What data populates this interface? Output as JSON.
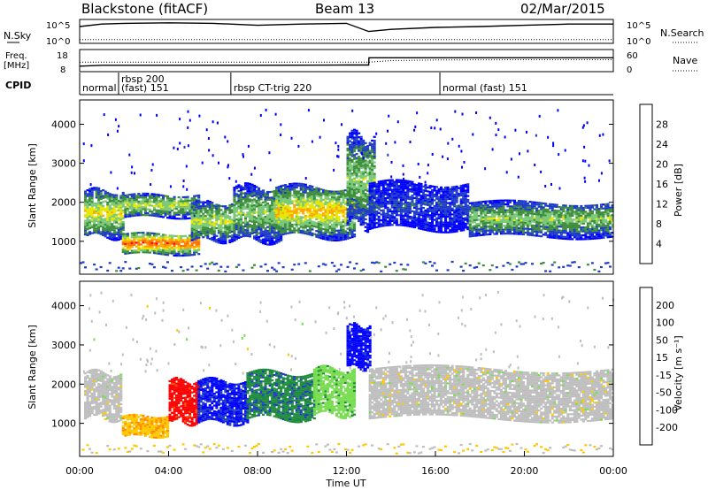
{
  "header": {
    "station": "Blackstone (fitACF)",
    "beam": "Beam 13",
    "date": "02/Mar/2015"
  },
  "noise_panel": {
    "left_label": "N.Sky",
    "right_label": "N.Search",
    "left_ticks": [
      "10^5",
      "10^0"
    ],
    "right_ticks": [
      "10^5",
      "10^0"
    ]
  },
  "freq_panel": {
    "left_label_top": "Freq.",
    "left_label_bottom": "[MHz]",
    "right_label": "Nave",
    "left_ticks": [
      "18",
      "8"
    ],
    "right_ticks": [
      "60",
      "0"
    ]
  },
  "cpid_panel": {
    "label": "CPID",
    "segments": [
      {
        "start_hour": 0.0,
        "name": "normal"
      },
      {
        "start_hour": 1.75,
        "name": "rbsp 200"
      },
      {
        "start_hour": 1.75,
        "name": "(fast) 151"
      },
      {
        "start_hour": 6.8,
        "name": "rbsp CT-trig 220"
      },
      {
        "start_hour": 16.2,
        "name": "normal (fast) 151"
      }
    ]
  },
  "power_panel": {
    "ylabel": "Slant Range [km]",
    "colorbar_label": "Power [dB]",
    "colorbar_ticks": [
      "28",
      "24",
      "20",
      "16",
      "12",
      "8",
      "4"
    ]
  },
  "velocity_panel": {
    "ylabel": "Slant Range [km]",
    "colorbar_label": "Velocity [m s⁻¹]",
    "colorbar_ticks": [
      "200",
      "100",
      "50",
      "15",
      "-15",
      "-50",
      "-100",
      "-200"
    ]
  },
  "xaxis": {
    "label": "Time UT",
    "ticks": [
      "00:00",
      "04:00",
      "08:00",
      "12:00",
      "16:00",
      "20:00",
      "00:00"
    ]
  },
  "chart_data": [
    {
      "type": "line",
      "title": "",
      "series": [
        {
          "name": "N.Sky",
          "x": [
            0,
            1,
            2,
            4,
            6,
            8,
            10,
            12,
            13,
            14,
            16,
            18,
            20,
            22,
            24
          ],
          "y": [
            5000,
            20000,
            30000,
            40000,
            30000,
            10000,
            20000,
            30000,
            300,
            1000,
            3000,
            5000,
            10000,
            20000,
            20000
          ]
        },
        {
          "name": "N.Search",
          "x": [
            0,
            2,
            4,
            6,
            8,
            10,
            12,
            13,
            16,
            20,
            24
          ],
          "y": [
            3,
            3,
            3,
            3,
            3,
            3,
            3,
            3,
            3,
            3,
            3
          ]
        }
      ],
      "ylim": [
        1,
        100000
      ]
    },
    {
      "type": "line",
      "series": [
        {
          "name": "Freq.",
          "x": [
            0,
            1,
            2,
            6,
            8,
            12,
            13,
            13.01,
            24
          ],
          "y": [
            10,
            10.5,
            10.5,
            10.5,
            10.5,
            10.6,
            10.6,
            14.5,
            14.5
          ]
        },
        {
          "name": "Nave",
          "x": [
            0,
            13,
            14,
            16,
            20,
            24
          ],
          "y": [
            25,
            25,
            30,
            32,
            33,
            33
          ]
        }
      ],
      "ylim": [
        8,
        18
      ]
    },
    {
      "type": "heatmap",
      "title": "Power [dB]",
      "xlabel": "Time UT",
      "ylabel": "Slant Range [km]",
      "xlim": [
        0,
        24
      ],
      "ylim": [
        180,
        4600
      ],
      "yticks": [
        1000,
        2000,
        3000,
        4000
      ],
      "colorscale": [
        "#0000ff",
        "#1e3cc8",
        "#3c8c3c",
        "#78c878",
        "#e6e600",
        "#ffa500",
        "#ff7000",
        "#ff0000"
      ],
      "bands": [
        {
          "x0": 0.2,
          "x1": 2.0,
          "y0": 1100,
          "y1": 2300,
          "core_db": 18
        },
        {
          "x0": 1.9,
          "x1": 5.3,
          "y0": 650,
          "y1": 1200,
          "core_db": 26
        },
        {
          "x0": 2.0,
          "x1": 5.3,
          "y0": 1600,
          "y1": 2200,
          "core_db": 16
        },
        {
          "x0": 5.0,
          "x1": 6.9,
          "y0": 1000,
          "y1": 2000,
          "core_db": 16
        },
        {
          "x0": 6.9,
          "x1": 9.0,
          "y0": 1000,
          "y1": 2400,
          "core_db": 14
        },
        {
          "x0": 8.8,
          "x1": 12.3,
          "y0": 1100,
          "y1": 2400,
          "core_db": 20
        },
        {
          "x0": 12.0,
          "x1": 13.2,
          "y0": 1400,
          "y1": 3700,
          "core_db": 14
        },
        {
          "x0": 13.0,
          "x1": 17.5,
          "y0": 1300,
          "y1": 2500,
          "core_db": 6
        },
        {
          "x0": 17.5,
          "x1": 24,
          "y0": 1100,
          "y1": 2000,
          "core_db": 14
        }
      ],
      "colorbar_range_db": [
        0,
        30
      ]
    },
    {
      "type": "heatmap",
      "title": "Velocity [m s⁻¹]",
      "xlabel": "Time UT",
      "ylabel": "Slant Range [km]",
      "xlim": [
        0,
        24
      ],
      "ylim": [
        180,
        4600
      ],
      "yticks": [
        1000,
        2000,
        3000,
        4000
      ],
      "colorscale": [
        "#ff0000",
        "#ff5000",
        "#ff8c00",
        "#ffc800",
        "#bebebe",
        "#78dc50",
        "#1e8c3c",
        "#1e3cc8",
        "#0000ff"
      ],
      "bands": [
        {
          "x0": 0.2,
          "x1": 1.9,
          "y0": 1100,
          "y1": 2300,
          "vel": 0
        },
        {
          "x0": 1.9,
          "x1": 4.0,
          "y0": 650,
          "y1": 1200,
          "vel": -70
        },
        {
          "x0": 4.0,
          "x1": 5.3,
          "y0": 1000,
          "y1": 2100,
          "vel": -220
        },
        {
          "x0": 5.3,
          "x1": 7.5,
          "y0": 1000,
          "y1": 2100,
          "vel": 200
        },
        {
          "x0": 7.5,
          "x1": 10.5,
          "y0": 1100,
          "y1": 2300,
          "vel": 120
        },
        {
          "x0": 10.5,
          "x1": 12.3,
          "y0": 1200,
          "y1": 2400,
          "vel": 60
        },
        {
          "x0": 12.0,
          "x1": 13.0,
          "y0": 2400,
          "y1": 3500,
          "vel": 220
        },
        {
          "x0": 13.0,
          "x1": 24,
          "y0": 1100,
          "y1": 2400,
          "vel": 0
        }
      ],
      "colorbar_range": [
        -250,
        250
      ]
    }
  ]
}
